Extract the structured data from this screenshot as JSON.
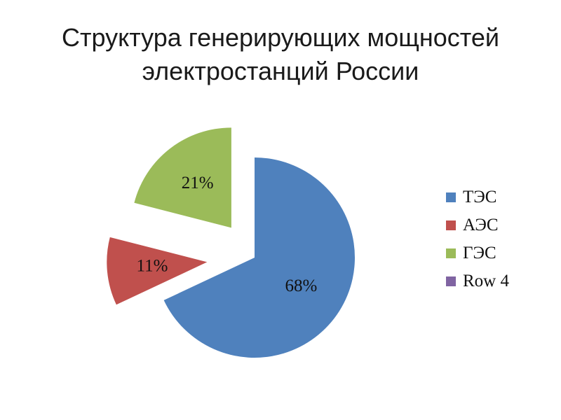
{
  "title_line1": "Структура генерирующих мощностей",
  "title_line2": "электростанций России",
  "chart_data": {
    "type": "pie",
    "exploded": true,
    "slices": [
      {
        "label": "ТЭС",
        "value": 68,
        "value_label": "68%",
        "color": "#4F81BD"
      },
      {
        "label": "АЭС",
        "value": 11,
        "value_label": "11%",
        "color": "#C0504D"
      },
      {
        "label": "ГЭС",
        "value": 21,
        "value_label": "21%",
        "color": "#9BBB59"
      },
      {
        "label": "Row 4",
        "value": 0,
        "value_label": "",
        "color": "#8064A2"
      }
    ],
    "legend_position": "right"
  }
}
